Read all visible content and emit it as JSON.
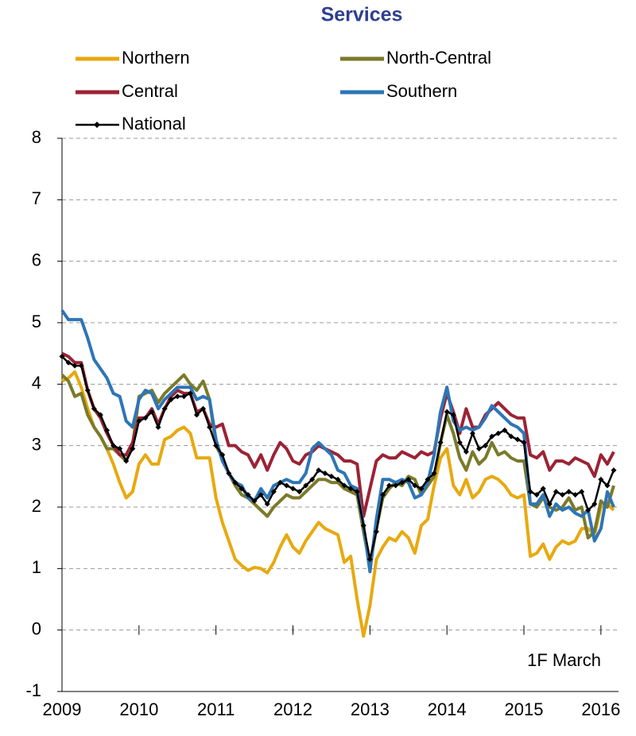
{
  "chart_data": {
    "type": "line",
    "title": "Services",
    "annotation": "1F March",
    "categories": [
      "2009",
      null,
      null,
      null,
      null,
      null,
      null,
      null,
      null,
      null,
      null,
      null,
      "2010",
      null,
      null,
      null,
      null,
      null,
      null,
      null,
      null,
      null,
      null,
      null,
      "2011",
      null,
      null,
      null,
      null,
      null,
      null,
      null,
      null,
      null,
      null,
      null,
      "2012",
      null,
      null,
      null,
      null,
      null,
      null,
      null,
      null,
      null,
      null,
      null,
      "2013",
      null,
      null,
      null,
      null,
      null,
      null,
      null,
      null,
      null,
      null,
      null,
      "2014",
      null,
      null,
      null,
      null,
      null,
      null,
      null,
      null,
      null,
      null,
      null,
      "2015",
      null,
      null,
      null,
      null,
      null,
      null,
      null,
      null,
      null,
      null,
      null,
      "2016",
      null,
      null
    ],
    "series": [
      {
        "name": "Northern",
        "color": "#e8a90f",
        "values": [
          4.05,
          4.1,
          4.2,
          3.95,
          3.6,
          3.3,
          3.15,
          2.95,
          2.7,
          2.4,
          2.15,
          2.25,
          2.7,
          2.85,
          2.7,
          2.7,
          3.1,
          3.15,
          3.25,
          3.3,
          3.2,
          2.8,
          2.8,
          2.8,
          2.15,
          1.75,
          1.45,
          1.15,
          1.05,
          0.97,
          1.02,
          1.0,
          0.93,
          1.1,
          1.35,
          1.55,
          1.35,
          1.25,
          1.45,
          1.6,
          1.75,
          1.65,
          1.6,
          1.55,
          1.1,
          1.2,
          0.5,
          -0.1,
          0.4,
          1.15,
          1.35,
          1.5,
          1.45,
          1.6,
          1.5,
          1.25,
          1.7,
          1.8,
          2.35,
          2.8,
          2.95,
          2.35,
          2.2,
          2.45,
          2.15,
          2.25,
          2.45,
          2.5,
          2.45,
          2.35,
          2.2,
          2.15,
          2.2,
          1.2,
          1.25,
          1.4,
          1.15,
          1.35,
          1.45,
          1.4,
          1.45,
          1.65,
          1.65,
          1.55,
          2.0,
          2.05,
          1.95
        ]
      },
      {
        "name": "North-Central",
        "color": "#7a7a2a",
        "values": [
          4.15,
          4.05,
          3.8,
          3.85,
          3.5,
          3.3,
          3.15,
          2.95,
          2.95,
          2.85,
          2.75,
          3.0,
          3.8,
          3.85,
          3.9,
          3.7,
          3.85,
          3.95,
          4.05,
          4.15,
          4.0,
          3.9,
          4.05,
          3.75,
          3.0,
          2.8,
          2.55,
          2.35,
          2.2,
          2.15,
          2.05,
          1.95,
          1.85,
          2.0,
          2.1,
          2.2,
          2.15,
          2.15,
          2.25,
          2.35,
          2.45,
          2.45,
          2.4,
          2.4,
          2.3,
          2.25,
          2.2,
          1.6,
          1.05,
          1.65,
          2.15,
          2.3,
          2.4,
          2.35,
          2.5,
          2.45,
          2.2,
          2.35,
          2.5,
          3.05,
          3.5,
          3.2,
          2.8,
          2.6,
          2.9,
          2.7,
          2.8,
          3.05,
          2.85,
          2.9,
          2.8,
          2.75,
          2.75,
          2.05,
          2.0,
          2.15,
          2.0,
          1.95,
          2.0,
          2.15,
          1.95,
          2.0,
          1.5,
          1.6,
          2.1,
          2.0,
          2.35
        ]
      },
      {
        "name": "Central",
        "color": "#9b2335",
        "values": [
          4.5,
          4.45,
          4.35,
          4.35,
          3.9,
          3.6,
          3.45,
          3.2,
          3.0,
          2.85,
          2.85,
          3.05,
          3.45,
          3.45,
          3.6,
          3.35,
          3.6,
          3.8,
          3.9,
          3.85,
          3.85,
          3.55,
          3.6,
          3.35,
          3.3,
          3.35,
          3.0,
          3.0,
          2.9,
          2.85,
          2.65,
          2.85,
          2.6,
          2.85,
          3.05,
          2.95,
          2.75,
          2.7,
          2.85,
          2.9,
          3.0,
          2.95,
          2.9,
          2.85,
          2.75,
          2.75,
          2.7,
          1.85,
          2.3,
          2.75,
          2.85,
          2.8,
          2.8,
          2.9,
          2.85,
          2.8,
          2.9,
          2.85,
          2.9,
          3.45,
          3.85,
          3.55,
          3.2,
          3.6,
          3.3,
          3.3,
          3.5,
          3.6,
          3.7,
          3.6,
          3.5,
          3.45,
          3.45,
          2.85,
          2.8,
          2.9,
          2.6,
          2.75,
          2.75,
          2.7,
          2.8,
          2.75,
          2.7,
          2.5,
          2.85,
          2.7,
          2.9
        ]
      },
      {
        "name": "Southern",
        "color": "#2e75b6",
        "values": [
          5.2,
          5.05,
          5.05,
          5.05,
          4.75,
          4.4,
          4.25,
          4.1,
          3.85,
          3.8,
          3.4,
          3.3,
          3.75,
          3.9,
          3.85,
          3.6,
          3.75,
          3.85,
          3.95,
          3.95,
          3.95,
          3.75,
          3.8,
          3.75,
          3.1,
          2.75,
          2.55,
          2.4,
          2.35,
          2.15,
          2.1,
          2.3,
          2.15,
          2.35,
          2.4,
          2.45,
          2.4,
          2.4,
          2.55,
          2.95,
          3.05,
          2.95,
          2.85,
          2.6,
          2.55,
          2.35,
          2.3,
          1.7,
          0.95,
          1.8,
          2.45,
          2.45,
          2.4,
          2.45,
          2.4,
          2.15,
          2.2,
          2.4,
          2.85,
          3.55,
          3.95,
          3.4,
          3.25,
          3.3,
          3.25,
          3.3,
          3.45,
          3.65,
          3.55,
          3.45,
          3.35,
          3.3,
          3.2,
          2.05,
          2.05,
          2.2,
          1.85,
          2.05,
          1.95,
          2.0,
          1.9,
          1.85,
          1.95,
          1.45,
          1.65,
          2.25,
          2.0
        ]
      },
      {
        "name": "National",
        "color": "#000000",
        "marker": "diamond",
        "values": [
          4.45,
          4.35,
          4.3,
          4.3,
          3.9,
          3.6,
          3.5,
          3.25,
          3.0,
          2.95,
          2.75,
          2.95,
          3.4,
          3.45,
          3.55,
          3.3,
          3.6,
          3.75,
          3.8,
          3.8,
          3.85,
          3.5,
          3.6,
          3.3,
          3.0,
          2.85,
          2.55,
          2.4,
          2.3,
          2.2,
          2.1,
          2.2,
          2.05,
          2.25,
          2.4,
          2.35,
          2.3,
          2.25,
          2.35,
          2.45,
          2.6,
          2.55,
          2.5,
          2.45,
          2.35,
          2.3,
          2.25,
          1.7,
          1.15,
          1.6,
          2.2,
          2.35,
          2.35,
          2.4,
          2.45,
          2.35,
          2.3,
          2.45,
          2.55,
          3.05,
          3.55,
          3.5,
          3.05,
          2.9,
          3.2,
          2.95,
          3.0,
          3.15,
          3.2,
          3.25,
          3.15,
          3.1,
          3.05,
          2.25,
          2.2,
          2.3,
          2.05,
          2.25,
          2.2,
          2.25,
          2.2,
          2.25,
          1.95,
          2.05,
          2.45,
          2.35,
          2.6
        ]
      }
    ],
    "ylim": [
      -1,
      8
    ],
    "yticks": [
      -1,
      0,
      1,
      2,
      3,
      4,
      5,
      6,
      7,
      8
    ],
    "grid": true
  }
}
